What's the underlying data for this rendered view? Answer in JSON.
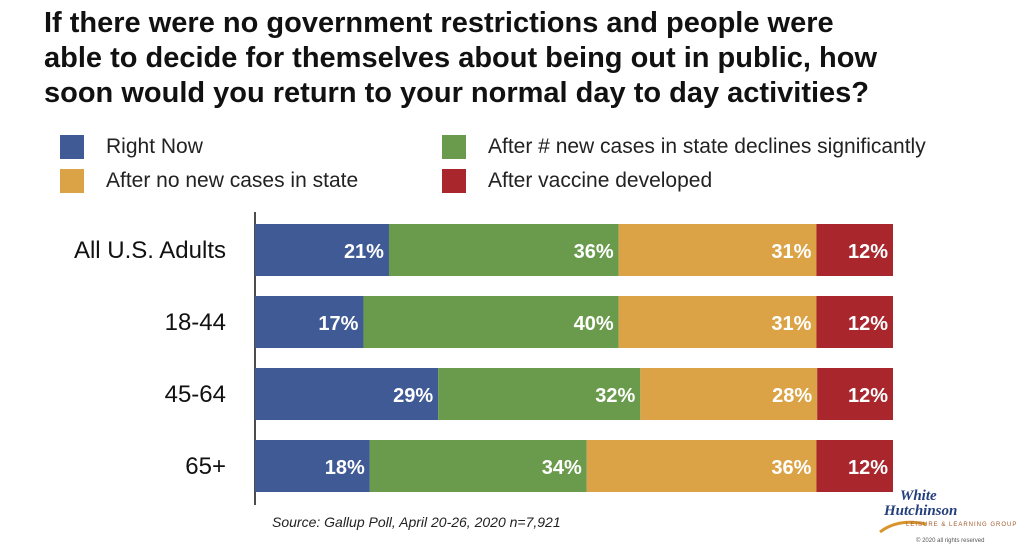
{
  "title_lines": [
    "If there were no government restrictions and people were",
    "able to decide for themselves about being out in public, how",
    "soon would you return to your normal day to day activities?"
  ],
  "legend": [
    {
      "label": "Right Now",
      "color": "#3f5a94"
    },
    {
      "label": "After # new cases in state declines significantly",
      "color": "#6a9a4c"
    },
    {
      "label": "After no new cases in state",
      "color": "#dba346"
    },
    {
      "label": "After vaccine developed",
      "color": "#a8262c"
    }
  ],
  "chart_data": {
    "type": "bar",
    "orientation": "horizontal",
    "stacked": true,
    "categories": [
      "All U.S. Adults",
      "18-44",
      "45-64",
      "65+"
    ],
    "series": [
      {
        "name": "Right Now",
        "color": "#3f5a94",
        "values": [
          21,
          17,
          29,
          18
        ]
      },
      {
        "name": "After # new cases in state declines significantly",
        "color": "#6a9a4c",
        "values": [
          36,
          40,
          32,
          34
        ]
      },
      {
        "name": "After no new cases in state",
        "color": "#dba346",
        "values": [
          31,
          31,
          28,
          36
        ]
      },
      {
        "name": "After vaccine developed",
        "color": "#a8262c",
        "values": [
          12,
          12,
          12,
          12
        ]
      }
    ],
    "value_format": "%",
    "legend_position": "top",
    "grid": false
  },
  "source": "Source: Gallup Poll, April 20-26, 2020 n=7,921",
  "logo": {
    "line1": "White",
    "line2": "Hutchinson",
    "tagline": "LEISURE & LEARNING GROUP",
    "copyright": "© 2020 all rights reserved"
  }
}
